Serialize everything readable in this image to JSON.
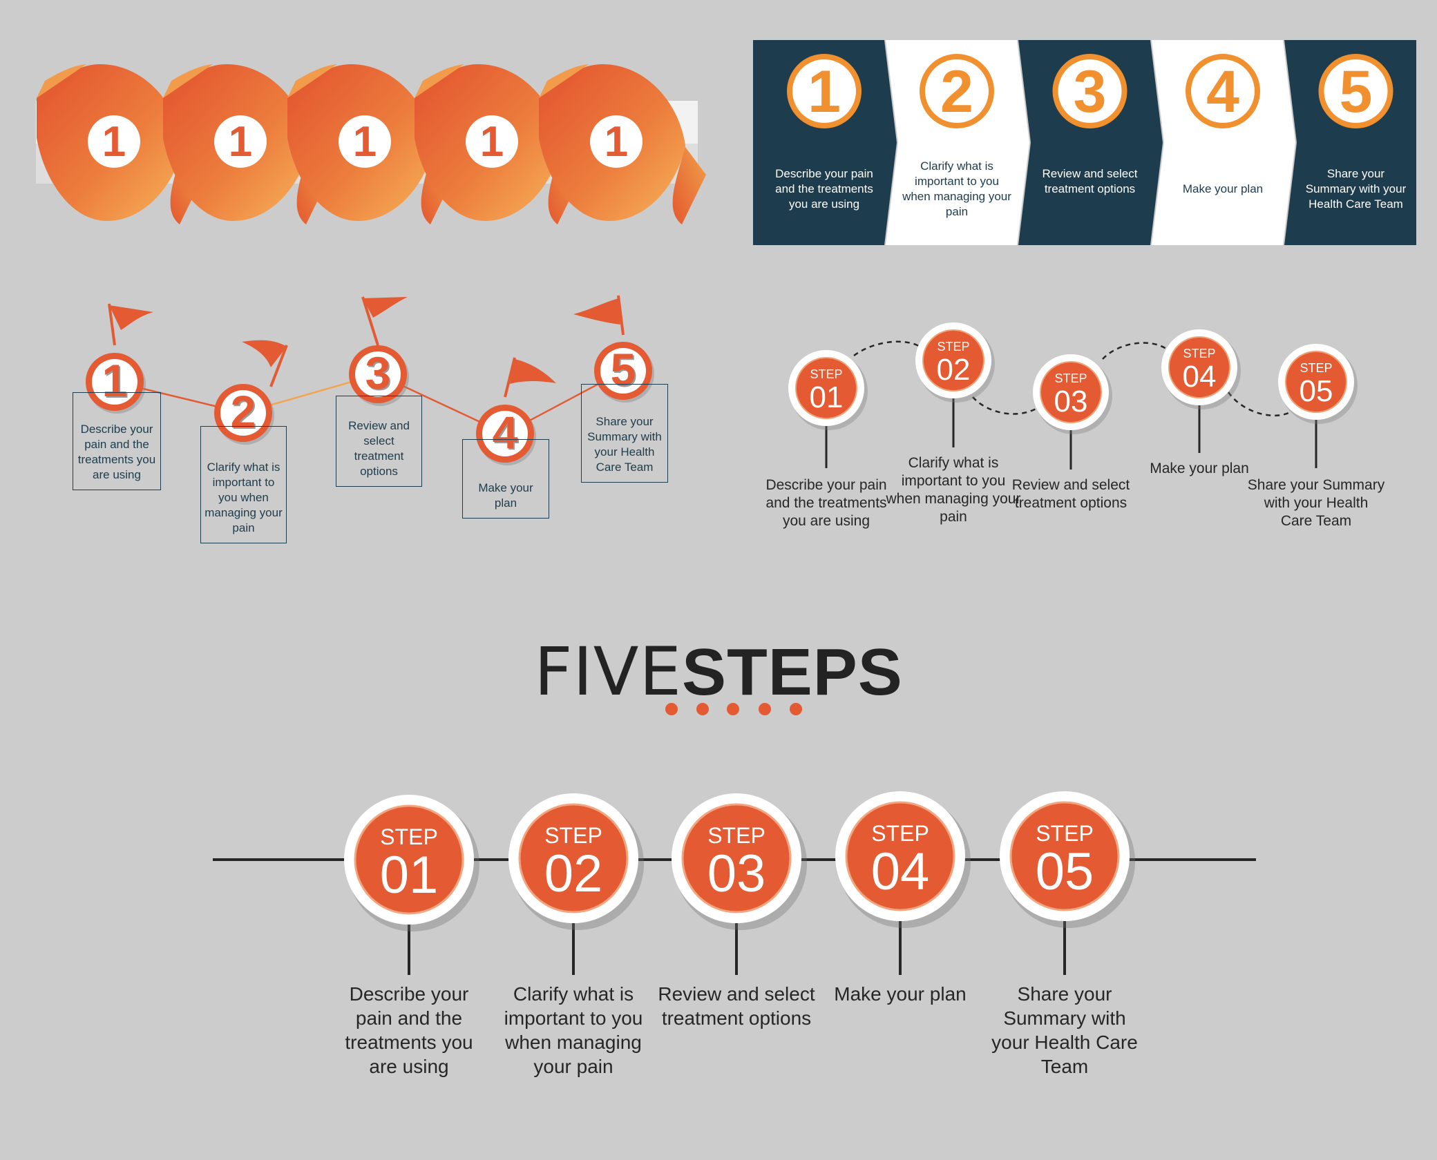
{
  "style1": {
    "numbers": [
      "1",
      "1",
      "1",
      "1",
      "1"
    ]
  },
  "style2": {
    "steps": [
      {
        "num": "1",
        "text": "Describe your pain and the treatments you are using"
      },
      {
        "num": "2",
        "text": "Clarify what is important to you when managing your pain"
      },
      {
        "num": "3",
        "text": "Review and select treatment options"
      },
      {
        "num": "4",
        "text": "Make your plan"
      },
      {
        "num": "5",
        "text": "Share your Summary with your Health Care Team"
      }
    ]
  },
  "style3": {
    "steps": [
      {
        "num": "1",
        "text": "Describe your pain and the treatments you are using"
      },
      {
        "num": "2",
        "text": "Clarify what is important to you when managing your pain"
      },
      {
        "num": "3",
        "text": "Review and select treatment options"
      },
      {
        "num": "4",
        "text": "Make your plan"
      },
      {
        "num": "5",
        "text": "Share your Summary with your Health Care Team"
      }
    ]
  },
  "style4": {
    "step_label": "STEP",
    "steps": [
      {
        "num": "01",
        "text": "Describe your pain and the treatments you are using"
      },
      {
        "num": "02",
        "text": "Clarify what is important to you when managing your pain"
      },
      {
        "num": "03",
        "text": "Review and select treatment options"
      },
      {
        "num": "04",
        "text": "Make your plan"
      },
      {
        "num": "05",
        "text": "Share your Summary with your Health Care Team"
      }
    ]
  },
  "title": {
    "light": "FIVE",
    "bold": "STEPS"
  },
  "style5": {
    "step_label": "STEP",
    "steps": [
      {
        "num": "01",
        "text": "Describe your pain and the treatments you are using"
      },
      {
        "num": "02",
        "text": "Clarify what is important to you when managing your pain"
      },
      {
        "num": "03",
        "text": "Review and select treatment options"
      },
      {
        "num": "04",
        "text": "Make your plan"
      },
      {
        "num": "05",
        "text": "Share your Summary with your Health Care Team"
      }
    ]
  },
  "colors": {
    "orange": "#e35a33",
    "orange_light": "#f2a44f",
    "navy": "#1d3c4d",
    "background": "#cccccc",
    "line": "#262626"
  }
}
